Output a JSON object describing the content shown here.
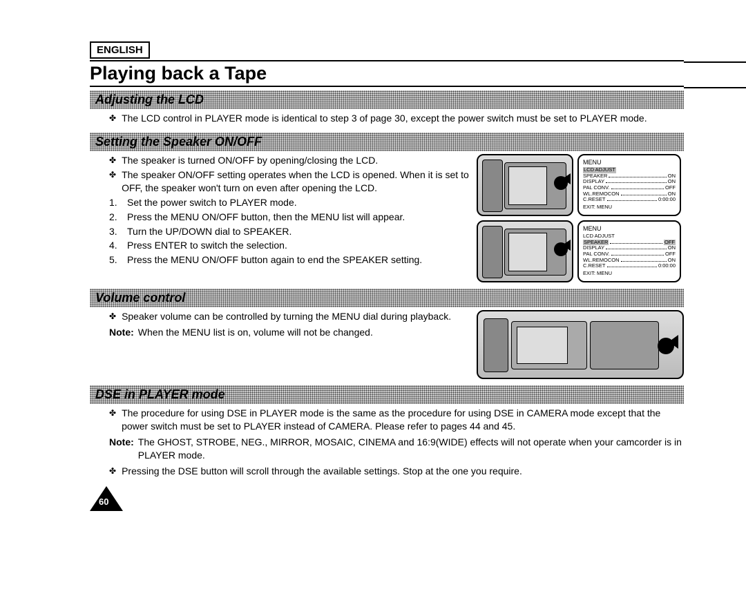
{
  "language": "ENGLISH",
  "page_title": "Playing back a Tape",
  "page_number": "60",
  "sections": {
    "adjust_lcd": {
      "header": "Adjusting the LCD",
      "bullet1": "The LCD control in PLAYER mode is identical to step 3 of page 30, except the power switch must be set to PLAYER mode."
    },
    "speaker": {
      "header": "Setting the Speaker ON/OFF",
      "bullet1": "The speaker is turned ON/OFF by opening/closing the LCD.",
      "bullet2": "The speaker ON/OFF setting operates when the LCD is opened. When it is set to OFF, the speaker won't turn on even after opening the LCD.",
      "step1": "Set the power switch to PLAYER mode.",
      "step2": "Press the MENU ON/OFF button, then the MENU list will appear.",
      "step3": "Turn the UP/DOWN dial to SPEAKER.",
      "step4": "Press ENTER to switch the selection.",
      "step5": "Press the MENU ON/OFF button again to end the SPEAKER setting."
    },
    "volume": {
      "header": "Volume control",
      "bullet1": "Speaker volume can be controlled by turning the MENU dial during playback.",
      "note": "When the MENU list is on, volume will not be changed."
    },
    "dse": {
      "header": "DSE in PLAYER mode",
      "bullet1": "The procedure for using DSE in PLAYER mode is the same as the procedure for using DSE in CAMERA mode except that the power switch must be set to PLAYER instead of CAMERA. Please refer to pages 44 and 45.",
      "note": "The GHOST, STROBE, NEG., MIRROR, MOSAIC, CINEMA and 16:9(WIDE) effects will not operate when your camcorder is in PLAYER mode.",
      "bullet2": "Pressing the DSE button will scroll through the available settings. Stop at the one you require."
    }
  },
  "menu1": {
    "title": "MENU",
    "items": [
      {
        "label": "LCD ADJUST",
        "value": "",
        "hl": true
      },
      {
        "label": "SPEAKER",
        "value": "ON"
      },
      {
        "label": "DISPLAY",
        "value": "ON"
      },
      {
        "label": "PAL CONV.",
        "value": "OFF"
      },
      {
        "label": "WL.REMOCON",
        "value": "ON"
      },
      {
        "label": "C.RESET",
        "value": "0:00:00"
      }
    ],
    "exit": "EXIT: MENU"
  },
  "menu2": {
    "title": "MENU",
    "items": [
      {
        "label": "LCD ADJUST",
        "value": ""
      },
      {
        "label": "SPEAKER",
        "value": "OFF",
        "hl": true
      },
      {
        "label": "DISPLAY",
        "value": "ON"
      },
      {
        "label": "PAL CONV.",
        "value": "OFF"
      },
      {
        "label": "WL.REMOCON",
        "value": "ON"
      },
      {
        "label": "C.RESET",
        "value": "0:00:00"
      }
    ],
    "exit": "EXIT: MENU"
  },
  "labels": {
    "note": "Note:"
  }
}
